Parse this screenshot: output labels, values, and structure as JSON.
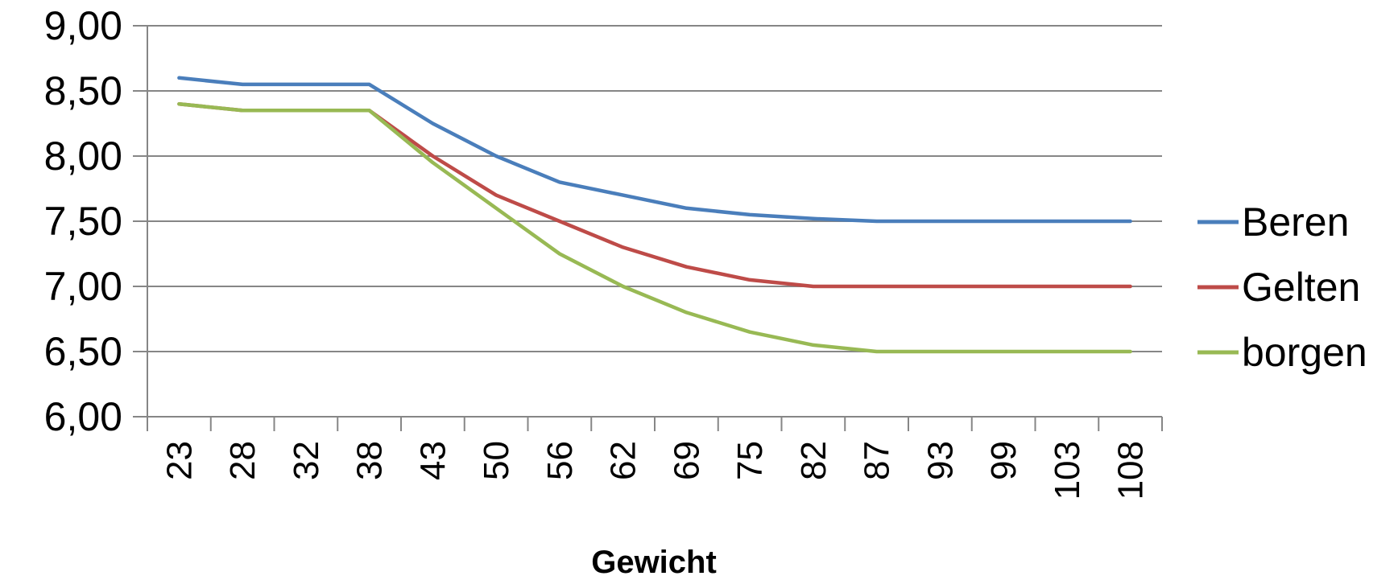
{
  "chart_data": {
    "type": "line",
    "title": "",
    "xlabel": "Gewicht",
    "ylabel": "",
    "categories": [
      "23",
      "28",
      "32",
      "38",
      "43",
      "50",
      "56",
      "62",
      "69",
      "75",
      "82",
      "87",
      "93",
      "99",
      "103",
      "108"
    ],
    "ylim": [
      6.0,
      9.0
    ],
    "ytick_labels": [
      "6,00",
      "6,50",
      "7,00",
      "7,50",
      "8,00",
      "8,50",
      "9,00"
    ],
    "grid": "horizontal",
    "legend_position": "right",
    "series": [
      {
        "name": "Beren",
        "color": "#4a7ebb",
        "values": [
          8.6,
          8.55,
          8.55,
          8.55,
          8.25,
          8.0,
          7.8,
          7.7,
          7.6,
          7.55,
          7.52,
          7.5,
          7.5,
          7.5,
          7.5,
          7.5
        ]
      },
      {
        "name": "Gelten",
        "color": "#be4b48",
        "values": [
          8.4,
          8.35,
          8.35,
          8.35,
          8.0,
          7.7,
          7.5,
          7.3,
          7.15,
          7.05,
          7.0,
          7.0,
          7.0,
          7.0,
          7.0,
          7.0
        ]
      },
      {
        "name": "borgen",
        "color": "#98b954",
        "values": [
          8.4,
          8.35,
          8.35,
          8.35,
          7.95,
          7.6,
          7.25,
          7.0,
          6.8,
          6.65,
          6.55,
          6.5,
          6.5,
          6.5,
          6.5,
          6.5
        ]
      }
    ]
  }
}
